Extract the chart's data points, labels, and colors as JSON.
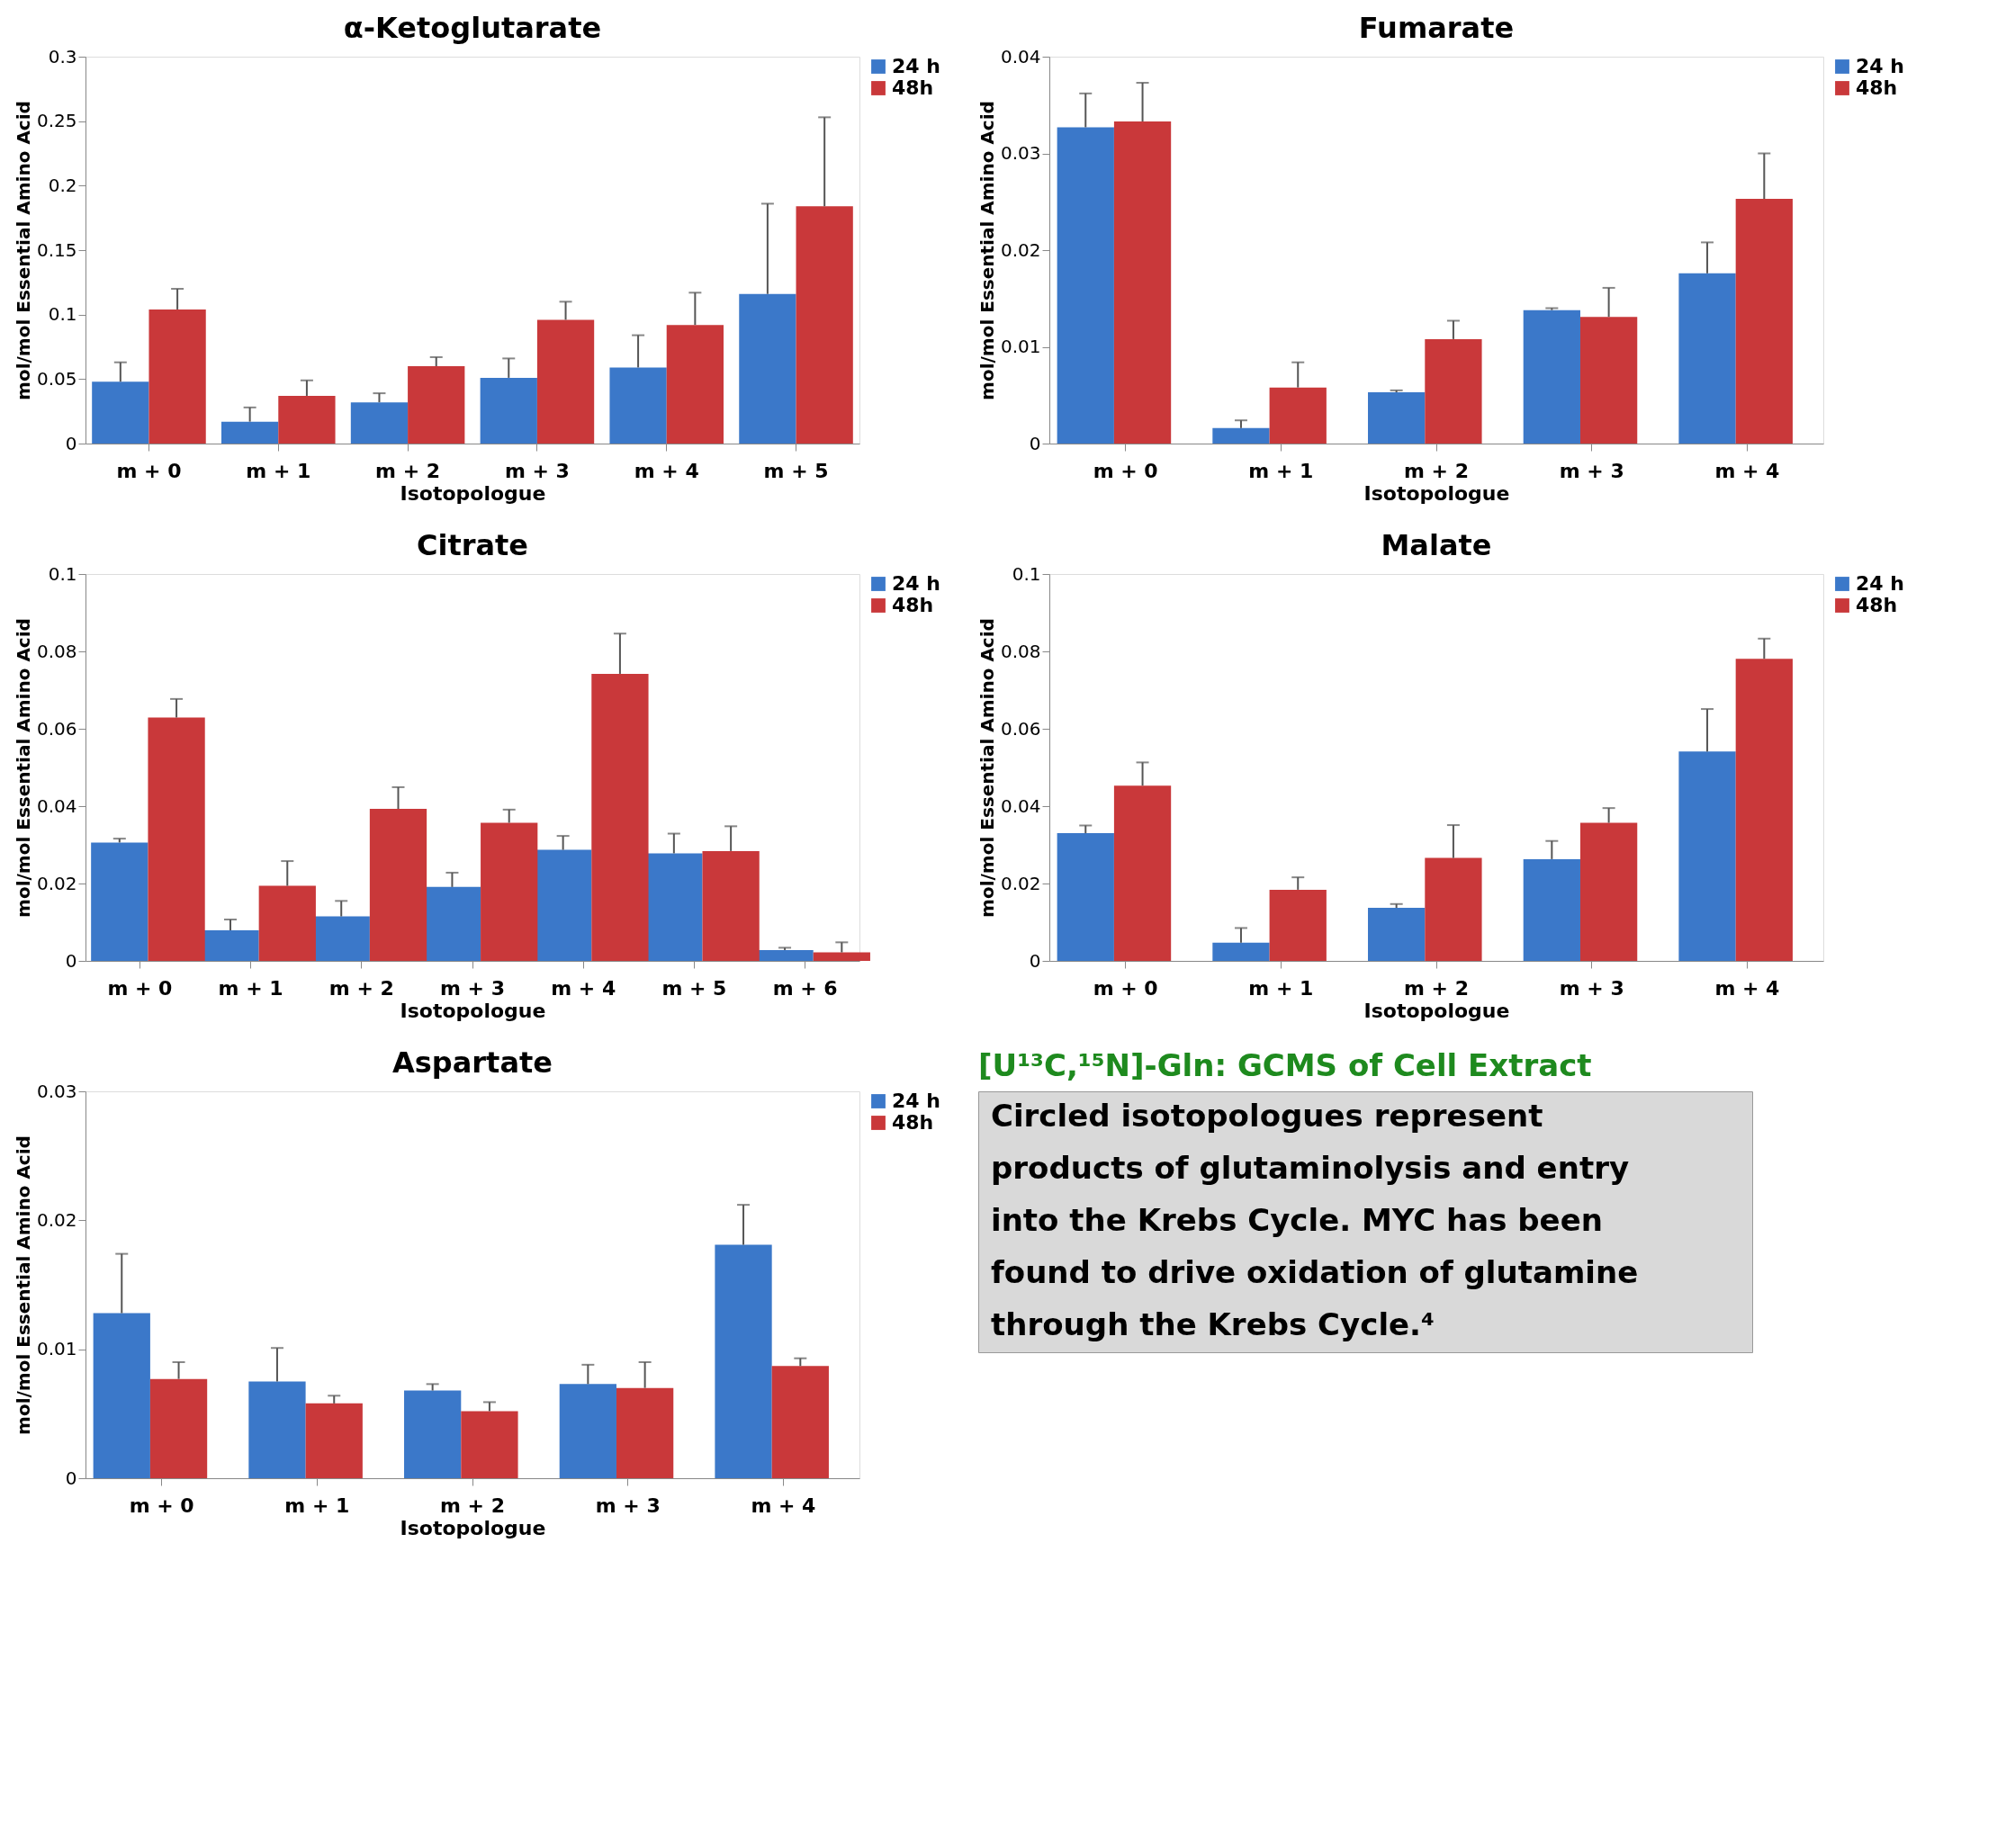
{
  "chart_data": [
    {
      "type": "bar",
      "title": "α-Ketoglutarate",
      "xlabel": "Isotopologue",
      "ylabel": "mol/mol Essential Amino Acid",
      "categories": [
        "m + 0",
        "m + 1",
        "m + 2",
        "m + 3",
        "m + 4",
        "m + 5"
      ],
      "ylim": [
        0,
        0.3
      ],
      "yticks": [
        0,
        0.05,
        0.1,
        0.15,
        0.2,
        0.25,
        0.3
      ],
      "legend": "right",
      "series": [
        {
          "name": "24 h",
          "color": "#3b78c9",
          "values": [
            0.048,
            0.017,
            0.032,
            0.051,
            0.059,
            0.116
          ],
          "errors": [
            0.015,
            0.011,
            0.007,
            0.015,
            0.025,
            0.07
          ]
        },
        {
          "name": "48h",
          "color": "#c9383a",
          "values": [
            0.104,
            0.037,
            0.06,
            0.096,
            0.092,
            0.184
          ],
          "errors": [
            0.016,
            0.012,
            0.007,
            0.014,
            0.025,
            0.069
          ]
        }
      ]
    },
    {
      "type": "bar",
      "title": "Fumarate",
      "xlabel": "Isotopologue",
      "ylabel": "mol/mol Essential Amino Acid",
      "categories": [
        "m + 0",
        "m + 1",
        "m + 2",
        "m + 3",
        "m + 4"
      ],
      "ylim": [
        0,
        0.04
      ],
      "yticks": [
        0,
        0.01,
        0.02,
        0.03,
        0.04
      ],
      "legend": "right",
      "series": [
        {
          "name": "24 h",
          "color": "#3b78c9",
          "values": [
            0.0327,
            0.0016,
            0.0053,
            0.0138,
            0.0176
          ],
          "errors": [
            0.0035,
            0.0008,
            0.0002,
            0.0002,
            0.0032
          ]
        },
        {
          "name": "48h",
          "color": "#c9383a",
          "values": [
            0.0333,
            0.0058,
            0.0108,
            0.0131,
            0.0253
          ],
          "errors": [
            0.004,
            0.0026,
            0.0019,
            0.003,
            0.0047
          ]
        }
      ]
    },
    {
      "type": "bar",
      "title": "Citrate",
      "xlabel": "Isotopologue",
      "ylabel": "mol/mol Essential Amino Acid",
      "categories": [
        "m + 0",
        "m + 1",
        "m + 2",
        "m + 3",
        "m + 4",
        "m + 5",
        "m + 6"
      ],
      "ylim": [
        0,
        0.1
      ],
      "yticks": [
        0,
        0.02,
        0.04,
        0.06,
        0.08,
        0.1
      ],
      "legend": "right",
      "series": [
        {
          "name": "24 h",
          "color": "#3b78c9",
          "values": [
            0.0306,
            0.0079,
            0.0115,
            0.0191,
            0.0287,
            0.0278,
            0.0028
          ],
          "errors": [
            0.001,
            0.0028,
            0.004,
            0.0037,
            0.0036,
            0.0051,
            0.0006
          ]
        },
        {
          "name": "48h",
          "color": "#c9383a",
          "values": [
            0.0629,
            0.0194,
            0.0393,
            0.0357,
            0.0742,
            0.0284,
            0.0022
          ],
          "errors": [
            0.0048,
            0.0064,
            0.0056,
            0.0034,
            0.0104,
            0.0064,
            0.0026
          ]
        }
      ]
    },
    {
      "type": "bar",
      "title": "Malate",
      "xlabel": "Isotopologue",
      "ylabel": "mol/mol Essential Amino Acid",
      "categories": [
        "m + 0",
        "m + 1",
        "m + 2",
        "m + 3",
        "m + 4"
      ],
      "ylim": [
        0,
        0.1
      ],
      "yticks": [
        0,
        0.02,
        0.04,
        0.06,
        0.08,
        0.1
      ],
      "legend": "right",
      "series": [
        {
          "name": "24 h",
          "color": "#3b78c9",
          "values": [
            0.033,
            0.0047,
            0.0137,
            0.0263,
            0.0541
          ],
          "errors": [
            0.002,
            0.0038,
            0.001,
            0.0047,
            0.011
          ]
        },
        {
          "name": "48h",
          "color": "#c9383a",
          "values": [
            0.0453,
            0.0184,
            0.0266,
            0.0357,
            0.0781
          ],
          "errors": [
            0.006,
            0.0032,
            0.0085,
            0.0038,
            0.0052
          ]
        }
      ]
    },
    {
      "type": "bar",
      "title": "Aspartate",
      "xlabel": "Isotopologue",
      "ylabel": "mol/mol Essential Amino Acid",
      "categories": [
        "m + 0",
        "m + 1",
        "m + 2",
        "m + 3",
        "m + 4"
      ],
      "ylim": [
        0,
        0.03
      ],
      "yticks": [
        0,
        0.01,
        0.02,
        0.03
      ],
      "legend": "right",
      "series": [
        {
          "name": "24 h",
          "color": "#3b78c9",
          "values": [
            0.0128,
            0.0075,
            0.0068,
            0.0073,
            0.0181
          ],
          "errors": [
            0.0046,
            0.0026,
            0.0005,
            0.0015,
            0.0031
          ]
        },
        {
          "name": "48h",
          "color": "#c9383a",
          "values": [
            0.0077,
            0.0058,
            0.0052,
            0.007,
            0.0087
          ],
          "errors": [
            0.0013,
            0.0006,
            0.0007,
            0.002,
            0.0006
          ]
        }
      ]
    },
    {
      "type": "other",
      "title": "[U¹³C,¹⁵N]-Gln: GCMS of Cell Extract",
      "annotations": [
        "Circled isotopologues represent products of glutaminolysis and entry into the Krebs Cycle. MYC has been found to drive oxidation of glutamine through the Krebs Cycle.⁴"
      ]
    }
  ]
}
